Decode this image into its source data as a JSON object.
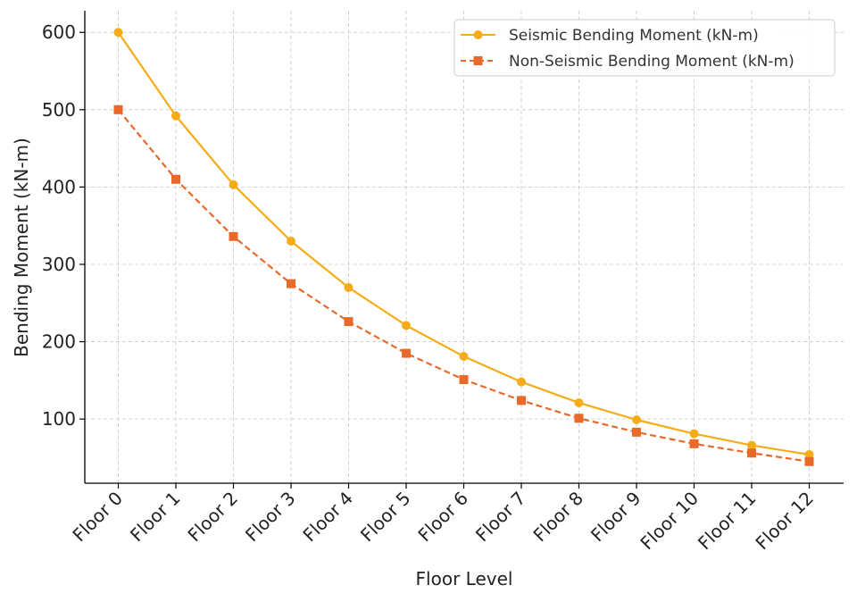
{
  "chart_data": {
    "type": "line",
    "title": "",
    "xlabel": "Floor Level",
    "ylabel": "Bending Moment (kN-m)",
    "categories": [
      "Floor 0",
      "Floor 1",
      "Floor 2",
      "Floor 3",
      "Floor 4",
      "Floor 5",
      "Floor 6",
      "Floor 7",
      "Floor 8",
      "Floor 9",
      "Floor 10",
      "Floor 11",
      "Floor 12"
    ],
    "ylim": [
      17,
      628
    ],
    "yticks": [
      100,
      200,
      300,
      400,
      500,
      600
    ],
    "grid": true,
    "legend_position": "top-right",
    "series": [
      {
        "name": "Seismic Bending Moment (kN-m)",
        "color": "#f5ac16",
        "marker": "circle",
        "linestyle": "solid",
        "values": [
          600,
          492,
          403,
          330,
          270,
          221,
          181,
          148,
          121,
          99,
          81,
          66,
          54
        ]
      },
      {
        "name": "Non-Seismic Bending Moment (kN-m)",
        "color": "#e8692a",
        "marker": "square",
        "linestyle": "dashed",
        "values": [
          500,
          410,
          336,
          275,
          226,
          185,
          151,
          124,
          101,
          83,
          68,
          56,
          45
        ]
      }
    ]
  }
}
